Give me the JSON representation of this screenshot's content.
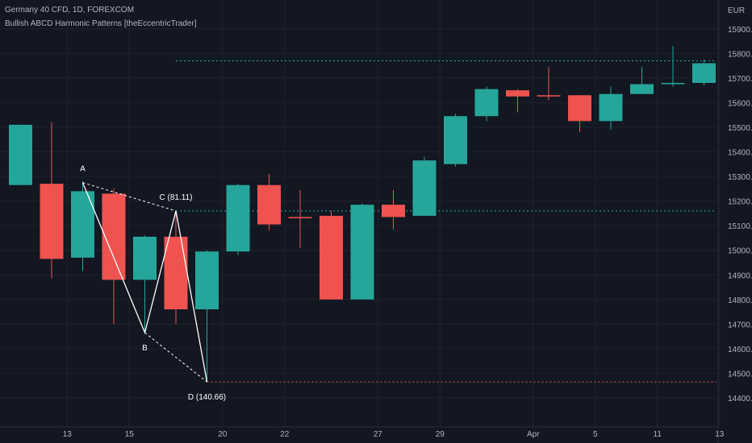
{
  "header": {
    "title": "Germany 40 CFD, 1D, FOREXCOM",
    "indicator": "Bullish ABCD Harmonic Patterns [theEccentricTrader]",
    "currency": "EUR"
  },
  "colors": {
    "background": "#131722",
    "grid": "#1e222d",
    "bull": "#26a69a",
    "bear": "#ef5350",
    "pattern_line": "#ffffff",
    "level_green": "#26a69a",
    "level_red": "#ef5350",
    "text": "#b2b5be"
  },
  "chart_data": {
    "type": "candlestick",
    "title": "Germany 40 CFD, 1D, FOREXCOM",
    "ylabel": "EUR",
    "ylim": [
      14330,
      15930
    ],
    "y_ticks": [
      14400,
      14500,
      14600,
      14700,
      14800,
      14900,
      15000,
      15100,
      15200,
      15300,
      15400,
      15500,
      15600,
      15700,
      15800,
      15900
    ],
    "y_tick_labels": [
      "14400.0",
      "14500.0",
      "14600.0",
      "14700.0",
      "14800.0",
      "14900.0",
      "15000.0",
      "15100.0",
      "15200.0",
      "15300.0",
      "15400.0",
      "15500.0",
      "15600.0",
      "15700.0",
      "15800.0",
      "15900.0"
    ],
    "x_tick_labels": [
      {
        "label": "13",
        "bar": 1.5
      },
      {
        "label": "15",
        "bar": 3.5
      },
      {
        "label": "20",
        "bar": 6.5
      },
      {
        "label": "22",
        "bar": 8.5
      },
      {
        "label": "27",
        "bar": 11.5
      },
      {
        "label": "29",
        "bar": 13.5
      },
      {
        "label": "Apr",
        "bar": 16.5
      },
      {
        "label": "5",
        "bar": 18.5
      },
      {
        "label": "11",
        "bar": 20.5
      },
      {
        "label": "13",
        "bar": 22.5
      }
    ],
    "candles": [
      {
        "o": 15265,
        "h": 15510,
        "l": 15265,
        "c": 15510
      },
      {
        "o": 15270,
        "h": 15520,
        "l": 14885,
        "c": 14965
      },
      {
        "o": 14970,
        "h": 15280,
        "l": 14915,
        "c": 15240
      },
      {
        "o": 15230,
        "h": 15250,
        "l": 14700,
        "c": 14880
      },
      {
        "o": 14880,
        "h": 15060,
        "l": 14660,
        "c": 15055
      },
      {
        "o": 15055,
        "h": 15160,
        "l": 14700,
        "c": 14760
      },
      {
        "o": 14760,
        "h": 15000,
        "l": 14470,
        "c": 14995
      },
      {
        "o": 14995,
        "h": 15270,
        "l": 14980,
        "c": 15265
      },
      {
        "o": 15265,
        "h": 15310,
        "l": 15080,
        "c": 15105
      },
      {
        "o": 15135,
        "h": 15245,
        "l": 15010,
        "c": 15130
      },
      {
        "o": 15140,
        "h": 15160,
        "l": 14800,
        "c": 14800
      },
      {
        "o": 14800,
        "h": 15190,
        "l": 14800,
        "c": 15185
      },
      {
        "o": 15185,
        "h": 15245,
        "l": 15085,
        "c": 15135
      },
      {
        "o": 15140,
        "h": 15380,
        "l": 15140,
        "c": 15365
      },
      {
        "o": 15350,
        "h": 15555,
        "l": 15340,
        "c": 15545
      },
      {
        "o": 15545,
        "h": 15665,
        "l": 15525,
        "c": 15655
      },
      {
        "o": 15650,
        "h": 15655,
        "l": 15560,
        "c": 15625
      },
      {
        "o": 15630,
        "h": 15745,
        "l": 15610,
        "c": 15625
      },
      {
        "o": 15630,
        "h": 15630,
        "l": 15480,
        "c": 15525
      },
      {
        "o": 15525,
        "h": 15665,
        "l": 15490,
        "c": 15635
      },
      {
        "o": 15635,
        "h": 15745,
        "l": 15635,
        "c": 15675
      },
      {
        "o": 15675,
        "h": 15830,
        "l": 15665,
        "c": 15680
      },
      {
        "o": 15680,
        "h": 15775,
        "l": 15670,
        "c": 15760
      }
    ],
    "pattern": {
      "name": "Bullish ABCD",
      "points": [
        {
          "label": "A",
          "bar": 2,
          "price": 15275
        },
        {
          "label": "B",
          "bar": 4,
          "price": 14665
        },
        {
          "label": "C (81.11)",
          "bar": 5,
          "price": 15160
        },
        {
          "label": "D (140.66)",
          "bar": 6,
          "price": 14465
        }
      ]
    },
    "levels": [
      {
        "price": 15770,
        "from_bar": 5,
        "color": "green"
      },
      {
        "price": 15160,
        "from_bar": 5,
        "color": "green"
      },
      {
        "price": 14465,
        "from_bar": 6,
        "color": "red"
      }
    ]
  }
}
